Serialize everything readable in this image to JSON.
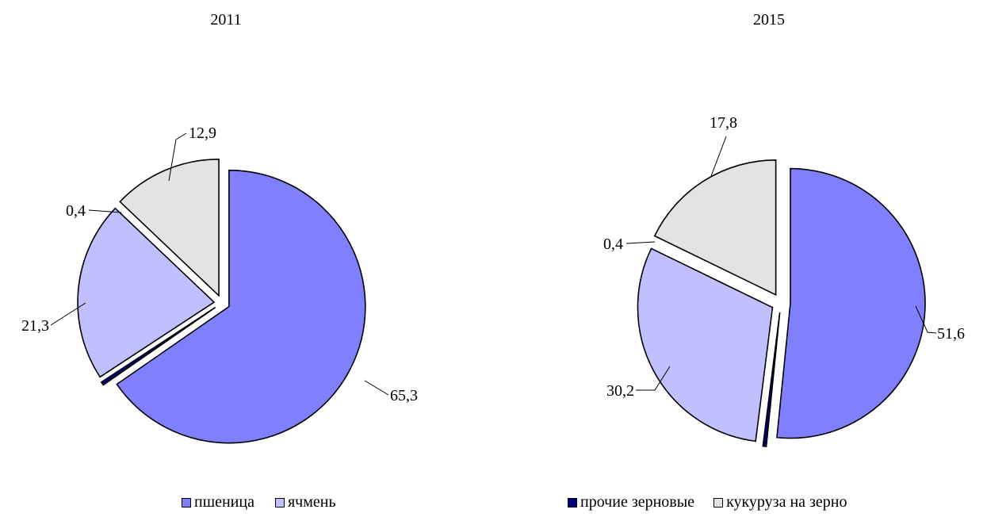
{
  "chart_data": [
    {
      "type": "pie",
      "title": "2011",
      "categories": [
        "пшеница",
        "прочие зерновые",
        "ячмень",
        "кукуруза на зерно"
      ],
      "values": [
        65.3,
        0.4,
        21.3,
        12.9
      ],
      "value_labels": [
        "65,3",
        "0,4",
        "21,3",
        "12,9"
      ],
      "colors": [
        "#8080FF",
        "#000080",
        "#C0C0FF",
        "#E3E3E3"
      ],
      "exploded": true
    },
    {
      "type": "pie",
      "title": "2015",
      "categories": [
        "пшеница",
        "прочие зерновые",
        "ячмень",
        "кукуруза на зерно"
      ],
      "values": [
        51.6,
        0.4,
        30.2,
        17.8
      ],
      "value_labels": [
        "51,6",
        "0,4",
        "30,2",
        "17,8"
      ],
      "colors": [
        "#8080FF",
        "#000080",
        "#C0C0FF",
        "#E3E3E3"
      ],
      "exploded": true
    }
  ],
  "titles": {
    "left": "2011",
    "right": "2015"
  },
  "legend": {
    "left": [
      {
        "label": "пшеница",
        "color": "#8080FF"
      },
      {
        "label": "ячмень",
        "color": "#C0C0FF"
      }
    ],
    "right": [
      {
        "label": "прочие зерновые",
        "color": "#000080"
      },
      {
        "label": "кукуруза на зерно",
        "color": "#E3E3E3"
      }
    ]
  }
}
